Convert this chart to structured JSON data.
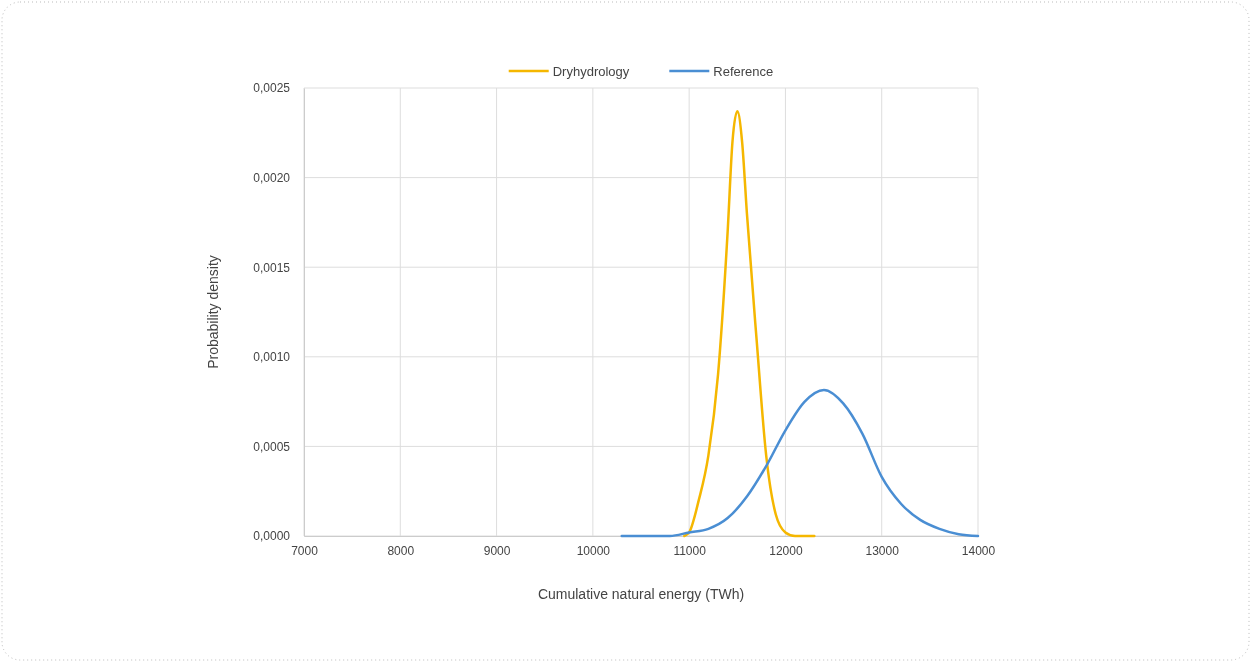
{
  "chart_data": {
    "type": "line",
    "xlabel": "Cumulative natural energy (TWh)",
    "ylabel": "Probability density",
    "xlim": [
      7000,
      14000
    ],
    "xticks": [
      7000,
      8000,
      9000,
      10000,
      11000,
      12000,
      13000,
      14000
    ],
    "ylim": [
      0,
      0.0025
    ],
    "yticks": [
      {
        "value": 0,
        "label": "0,0000"
      },
      {
        "value": 0.0005,
        "label": "0,0005"
      },
      {
        "value": 0.001,
        "label": "0,0010"
      },
      {
        "value": 0.0015,
        "label": "0,0015"
      },
      {
        "value": 0.002,
        "label": "0,0020"
      },
      {
        "value": 0.0025,
        "label": "0,0025"
      }
    ],
    "grid": true,
    "legend": "top",
    "marker": "none",
    "line_style": "solid",
    "series": [
      {
        "name": "Dryhydrology",
        "color": "#f5b700",
        "x": [
          10950,
          11000,
          11100,
          11200,
          11300,
          11400,
          11450,
          11500,
          11550,
          11600,
          11700,
          11800,
          11900,
          12000,
          12100,
          12300
        ],
        "values": [
          0,
          2e-05,
          0.0002,
          0.00045,
          0.0009,
          0.0017,
          0.0022,
          0.00237,
          0.0022,
          0.0018,
          0.0011,
          0.00045,
          0.00012,
          2e-05,
          0,
          0
        ]
      },
      {
        "name": "Reference",
        "color": "#4a8ed3",
        "x": [
          10300,
          10800,
          11000,
          11200,
          11400,
          11600,
          11800,
          12000,
          12200,
          12400,
          12600,
          12800,
          13000,
          13200,
          13400,
          13600,
          13800,
          14000
        ],
        "values": [
          0,
          0,
          2e-05,
          4e-05,
          0.0001,
          0.00022,
          0.00039,
          0.00059,
          0.00075,
          0.000815,
          0.00074,
          0.00057,
          0.00033,
          0.00018,
          9e-05,
          4e-05,
          1e-05,
          0
        ]
      }
    ]
  }
}
